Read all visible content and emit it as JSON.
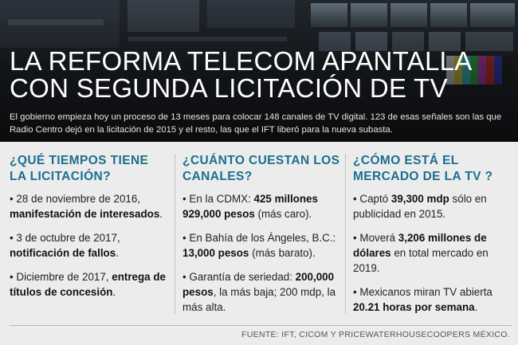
{
  "header": {
    "title_lines": [
      "LA REFORMA TELECOM APANTALLA",
      "CON SEGUNDA LICITACIÓN DE TV"
    ],
    "intro": "El gobierno empieza hoy un proceso de 13 meses para colocar 148 canales de TV digital. 123 de esas señales son las que Radio Centro dejó en la licitación de 2015 y el resto, las que el IFT liberó para la nueva subasta."
  },
  "columns": [
    {
      "heading": "¿QUÉ TIEMPOS TIENE LA LICITACIÓN?",
      "items": [
        {
          "plain": "• 28 de noviembre de 2016, ",
          "bold": "manifestación de interesados",
          "tail": "."
        },
        {
          "plain": "• 3 de octubre de 2017, ",
          "bold": "notificación de fallos",
          "tail": "."
        },
        {
          "plain": "• Diciembre de 2017, ",
          "bold": "entrega de títulos de concesión",
          "tail": "."
        }
      ]
    },
    {
      "heading": "¿CUÁNTO CUESTAN LOS CANALES?",
      "items": [
        {
          "plain": "• En la CDMX: ",
          "bold": "425 millones 929,000 pesos",
          "tail": " (más caro)."
        },
        {
          "plain": "• En Bahía de los Ángeles, B.C.: ",
          "bold": "13,000 pesos",
          "tail": " (más barato)."
        },
        {
          "plain": "• Garantía de seriedad: ",
          "bold": "200,000 pesos",
          "tail": ", la más baja; 200 mdp, la más alta."
        }
      ]
    },
    {
      "heading": "¿CÓMO ESTÁ EL MERCADO DE LA TV ?",
      "items": [
        {
          "plain": "• Captó ",
          "bold": "39,300 mdp",
          "tail": " sólo en publicidad en 2015."
        },
        {
          "plain": "• Moverá ",
          "bold": "3,206 millones de dólares",
          "tail": " en total mercado en 2019."
        },
        {
          "plain": "• Mexicanos miran TV abierta ",
          "bold": "20.21 horas por semana",
          "tail": "."
        }
      ]
    }
  ],
  "footer": {
    "source": "FUENTE: IFT, CICOM Y PRICEWATERHOUSECOOPERS MÉXICO."
  },
  "colors": {
    "heading_accent": "#1a6f8f",
    "background": "#ececec",
    "hero_dark": "#1b1f24"
  }
}
